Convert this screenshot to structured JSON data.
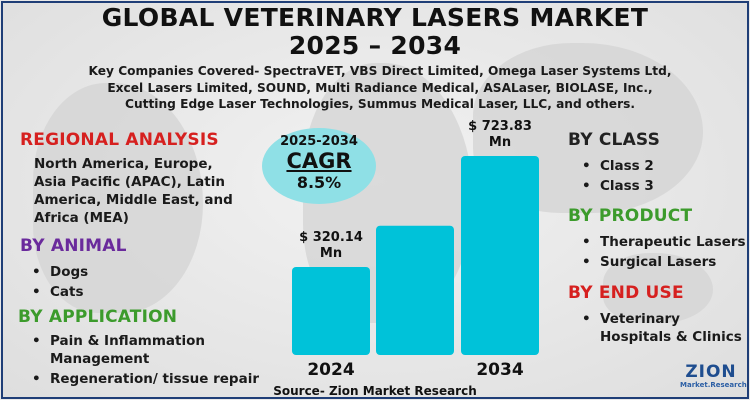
{
  "title_line1": "GLOBAL VETERINARY LASERS MARKET",
  "title_line2": "2025 – 2034",
  "subtitle": "Key Companies Covered- SpectraVET, VBS Direct Limited, Omega Laser Systems Ltd, Excel Lasers Limited, SOUND, Multi Radiance Medical, ASALaser, BIOLASE, Inc., Cutting Edge Laser Technologies, Summus Medical Laser, LLC, and others.",
  "left": {
    "regional": {
      "heading": "REGIONAL ANALYSIS",
      "text": "North America, Europe, Asia Pacific (APAC), Latin America, Middle East, and Africa (MEA)"
    },
    "animal": {
      "heading": "BY ANIMAL",
      "items": [
        "Dogs",
        "Cats"
      ]
    },
    "application": {
      "heading": "BY APPLICATION",
      "items": [
        "Pain & Inflammation Management",
        "Regeneration/ tissue repair"
      ]
    }
  },
  "right": {
    "class": {
      "heading": "BY CLASS",
      "items": [
        "Class 2",
        "Class 3"
      ]
    },
    "product": {
      "heading": "BY PRODUCT",
      "items": [
        "Therapeutic Lasers",
        "Surgical Lasers"
      ]
    },
    "end_use": {
      "heading": "BY END USE",
      "items": [
        "Veterinary Hospitals & Clinics"
      ]
    }
  },
  "cagr": {
    "period": "2025-2034",
    "label": "CAGR",
    "value": "8.5%"
  },
  "source": "Source- Zion Market Research",
  "logo": {
    "name": "ZION",
    "sub": "Market.Research"
  },
  "colors": {
    "bar": "#00c2d9",
    "circle": "#8fe0e6",
    "frame": "#1f3e77"
  },
  "chart_data": {
    "type": "bar",
    "categories": [
      "2024",
      "",
      "2034"
    ],
    "values": [
      320.14,
      470,
      723.83
    ],
    "value_labels": [
      "$ 320.14 Mn",
      "",
      "$ 723.83 Mn"
    ],
    "units": "USD Mn",
    "ylim": [
      0,
      800
    ]
  }
}
